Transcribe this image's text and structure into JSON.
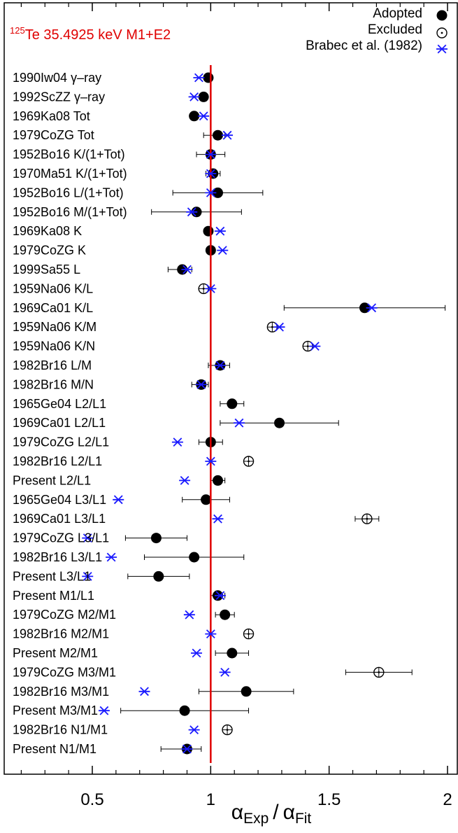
{
  "chart_data": {
    "type": "scatter",
    "title_sup": "125",
    "title": "Te 35.4925 keV M1+E2",
    "x_axis": {
      "label_main_1": "α",
      "label_sub_1": "Exp",
      "label_sep": "/",
      "label_main_2": "α",
      "label_sub_2": "Fit",
      "xlim": [
        0.0,
        2.06
      ],
      "ticks": [
        0.5,
        1.0,
        1.5,
        2.0
      ],
      "tick_labels": [
        "0.5",
        "1",
        "1.5",
        "2"
      ],
      "reference_line": 1.0,
      "reference_color": "#e00000"
    },
    "legend": {
      "placement": "top-right",
      "items": [
        {
          "label": "Adopted",
          "marker": "filled-circle"
        },
        {
          "label": "Excluded",
          "marker": "open-circle-dot"
        },
        {
          "label": "Brabec et al. (1982)",
          "marker": "blue-asterisk"
        }
      ]
    },
    "colors": {
      "adopted": "#000000",
      "brabec": "#1a1aff",
      "fit_line": "#e00000"
    },
    "rows": [
      {
        "label_pre": "1990Iw04 ",
        "label_sym": "γ",
        "label_post": "–ray",
        "status": "adopted",
        "value": 0.99,
        "err_lo": 0.0,
        "err_hi": 0.0,
        "brabec": 0.95
      },
      {
        "label_pre": "1992ScZZ ",
        "label_sym": "γ",
        "label_post": "–ray",
        "status": "adopted",
        "value": 0.97,
        "err_lo": 0.0,
        "err_hi": 0.0,
        "brabec": 0.93
      },
      {
        "label_pre": "1969Ka08 Tot",
        "status": "adopted",
        "value": 0.93,
        "err_lo": 0.0,
        "err_hi": 0.0,
        "brabec": 0.97
      },
      {
        "label_pre": "1979CoZG Tot",
        "status": "adopted",
        "value": 1.03,
        "err_lo": 0.06,
        "err_hi": 0.03,
        "brabec": 1.07
      },
      {
        "label_pre": "1952Bo16 K/(1+Tot)",
        "status": "adopted",
        "value": 1.0,
        "err_lo": 0.06,
        "err_hi": 0.06,
        "brabec": 1.0
      },
      {
        "label_pre": "1970Ma51 K/(1+Tot)",
        "status": "adopted",
        "value": 1.01,
        "err_lo": 0.03,
        "err_hi": 0.03,
        "brabec": 1.0
      },
      {
        "label_pre": "1952Bo16 L/(1+Tot)",
        "status": "adopted",
        "value": 1.03,
        "err_lo": 0.19,
        "err_hi": 0.19,
        "brabec": 1.0
      },
      {
        "label_pre": "1952Bo16 M/(1+Tot)",
        "status": "adopted",
        "value": 0.94,
        "err_lo": 0.19,
        "err_hi": 0.19,
        "brabec": 0.92
      },
      {
        "label_pre": "1969Ka08 K",
        "status": "adopted",
        "value": 0.99,
        "err_lo": 0.0,
        "err_hi": 0.0,
        "brabec": 1.04
      },
      {
        "label_pre": "1979CoZG K",
        "status": "adopted",
        "value": 1.0,
        "err_lo": 0.0,
        "err_hi": 0.0,
        "brabec": 1.05
      },
      {
        "label_pre": "1999Sa55 L",
        "status": "adopted",
        "value": 0.88,
        "err_lo": 0.06,
        "err_hi": 0.04,
        "brabec": 0.9
      },
      {
        "label_pre": "1959Na06 K/L",
        "status": "excluded",
        "value": 0.97,
        "err_lo": 0.0,
        "err_hi": 0.0,
        "brabec": 1.0
      },
      {
        "label_pre": "1969Ca01 K/L",
        "status": "adopted",
        "value": 1.65,
        "err_lo": 0.34,
        "err_hi": 0.34,
        "brabec": 1.68
      },
      {
        "label_pre": "1959Na06 K/M",
        "status": "excluded",
        "value": 1.26,
        "err_lo": 0.0,
        "err_hi": 0.0,
        "brabec": 1.29
      },
      {
        "label_pre": "1959Na06 K/N",
        "status": "excluded",
        "value": 1.41,
        "err_lo": 0.0,
        "err_hi": 0.0,
        "brabec": 1.44
      },
      {
        "label_pre": "1982Br16 L/M",
        "status": "adopted",
        "value": 1.04,
        "err_lo": 0.05,
        "err_hi": 0.04,
        "brabec": 1.04
      },
      {
        "label_pre": "1982Br16 M/N",
        "status": "adopted",
        "value": 0.96,
        "err_lo": 0.04,
        "err_hi": 0.03,
        "brabec": 0.96
      },
      {
        "label_pre": "1965Ge04 L2/L1",
        "status": "adopted",
        "value": 1.09,
        "err_lo": 0.05,
        "err_hi": 0.05,
        "brabec": null
      },
      {
        "label_pre": "1969Ca01 L2/L1",
        "status": "adopted",
        "value": 1.29,
        "err_lo": 0.25,
        "err_hi": 0.25,
        "brabec": 1.12
      },
      {
        "label_pre": "1979CoZG L2/L1",
        "status": "adopted",
        "value": 1.0,
        "err_lo": 0.05,
        "err_hi": 0.05,
        "brabec": 0.86
      },
      {
        "label_pre": "1982Br16 L2/L1",
        "status": "excluded",
        "value": 1.16,
        "err_lo": 0.0,
        "err_hi": 0.0,
        "brabec": 1.0
      },
      {
        "label_pre": "Present L2/L1",
        "status": "adopted",
        "value": 1.03,
        "err_lo": 0.03,
        "err_hi": 0.03,
        "brabec": 0.89
      },
      {
        "label_pre": "1965Ge04 L3/L1",
        "status": "adopted",
        "value": 0.98,
        "err_lo": 0.1,
        "err_hi": 0.1,
        "brabec": 0.61
      },
      {
        "label_pre": "1969Ca01 L3/L1",
        "status": "excluded",
        "value": 1.66,
        "err_lo": 0.05,
        "err_hi": 0.05,
        "brabec": 1.03
      },
      {
        "label_pre": "1979CoZG L3/L1",
        "status": "adopted",
        "value": 0.77,
        "err_lo": 0.13,
        "err_hi": 0.13,
        "brabec": 0.48
      },
      {
        "label_pre": "1982Br16 L3/L1",
        "status": "adopted",
        "value": 0.93,
        "err_lo": 0.21,
        "err_hi": 0.21,
        "brabec": 0.58
      },
      {
        "label_pre": "Present L3/L1",
        "status": "adopted",
        "value": 0.78,
        "err_lo": 0.13,
        "err_hi": 0.13,
        "brabec": 0.48
      },
      {
        "label_pre": "Present M1/L1",
        "status": "adopted",
        "value": 1.03,
        "err_lo": 0.03,
        "err_hi": 0.03,
        "brabec": 1.04
      },
      {
        "label_pre": "1979CoZG M2/M1",
        "status": "adopted",
        "value": 1.06,
        "err_lo": 0.04,
        "err_hi": 0.04,
        "brabec": 0.91
      },
      {
        "label_pre": "1982Br16 M2/M1",
        "status": "excluded",
        "value": 1.16,
        "err_lo": 0.0,
        "err_hi": 0.0,
        "brabec": 1.0
      },
      {
        "label_pre": "Present M2/M1",
        "status": "adopted",
        "value": 1.09,
        "err_lo": 0.07,
        "err_hi": 0.07,
        "brabec": 0.94
      },
      {
        "label_pre": "1979CoZG M3/M1",
        "status": "excluded",
        "value": 1.71,
        "err_lo": 0.14,
        "err_hi": 0.14,
        "brabec": 1.06
      },
      {
        "label_pre": "1982Br16 M3/M1",
        "status": "adopted",
        "value": 1.15,
        "err_lo": 0.2,
        "err_hi": 0.2,
        "brabec": 0.72
      },
      {
        "label_pre": "Present M3/M1",
        "status": "adopted",
        "value": 0.89,
        "err_lo": 0.27,
        "err_hi": 0.27,
        "brabec": 0.55
      },
      {
        "label_pre": "1982Br16 N1/M1",
        "status": "excluded",
        "value": 1.07,
        "err_lo": 0.0,
        "err_hi": 0.0,
        "brabec": 0.93
      },
      {
        "label_pre": "Present N1/M1",
        "status": "adopted",
        "value": 0.9,
        "err_lo": 0.11,
        "err_hi": 0.06,
        "brabec": 0.9
      }
    ]
  }
}
